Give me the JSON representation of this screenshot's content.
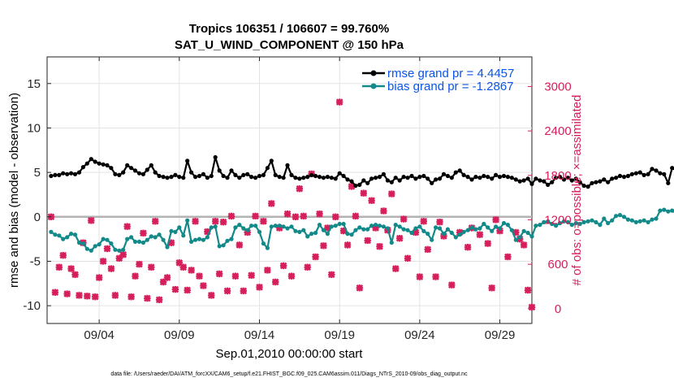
{
  "chart_data": {
    "type": "line",
    "title": "Tropics 106351 / 106607 = 99.760%",
    "subtitle": "SAT_U_WIND_COMPONENT @ 150 hPa",
    "xlabel": "Sep.01,2010 00:00:00 start",
    "ylabel": "rmse and bias (model - observation)",
    "y2label": "# of obs: o=possible; ×=assimilated",
    "footnote": "data file: /Users/raeder/DAI/ATM_forcXX/CAM6_setup/f.e21.FHIST_BGC.f09_025.CAM6assim.011/Diags_NTrS_2010-09/obs_diag_output.nc",
    "x_ticks": [
      "09/04",
      "09/09",
      "09/14",
      "09/19",
      "09/24",
      "09/29"
    ],
    "x_tick_days": [
      4,
      9,
      14,
      19,
      24,
      29
    ],
    "xlim": [
      0.75,
      31
    ],
    "ylim": [
      -12,
      18
    ],
    "y_ticks": [
      -10,
      -5,
      0,
      5,
      10,
      15
    ],
    "y2lim": [
      -200,
      3400
    ],
    "y2_ticks": [
      0,
      600,
      1200,
      1800,
      2400,
      3000
    ],
    "grid": true,
    "legend_position": "top-right",
    "colors": {
      "rmse": "#000000",
      "bias": "#138a8a",
      "obs": "#d61f5a",
      "zero_line": "#b3b3b3",
      "legend_text": "#0a55e6"
    },
    "series": [
      {
        "name": "rmse grand pr = 4.4457",
        "axis": "left",
        "x_start": 1,
        "x_step": 0.25,
        "values": [
          4.6,
          4.7,
          4.7,
          4.9,
          4.8,
          4.9,
          4.8,
          5.0,
          5.6,
          6.0,
          6.5,
          6.2,
          6.0,
          5.9,
          5.8,
          5.5,
          4.8,
          4.7,
          5.0,
          5.8,
          5.5,
          5.2,
          4.9,
          4.8,
          5.3,
          5.8,
          5.0,
          4.6,
          4.5,
          4.4,
          4.5,
          4.7,
          4.5,
          4.4,
          6.3,
          5.0,
          4.5,
          4.6,
          4.8,
          4.4,
          4.6,
          6.7,
          5.2,
          4.6,
          4.4,
          5.2,
          4.7,
          4.4,
          4.7,
          4.8,
          4.5,
          4.4,
          4.6,
          4.7,
          5.5,
          6.3,
          4.7,
          4.5,
          4.4,
          5.8,
          4.7,
          4.4,
          4.3,
          4.4,
          4.5,
          4.7,
          4.6,
          4.5,
          4.4,
          4.5,
          4.4,
          4.3,
          4.9,
          4.6,
          4.2,
          4.0,
          3.5,
          3.6,
          4.1,
          3.8,
          4.3,
          4.4,
          4.5,
          4.8,
          4.1,
          3.9,
          4.4,
          4.1,
          4.5,
          4.4,
          4.6,
          4.3,
          4.5,
          4.6,
          4.3,
          3.8,
          4.2,
          4.3,
          4.8,
          4.6,
          4.4,
          5.0,
          5.2,
          4.7,
          4.5,
          4.2,
          4.5,
          4.4,
          4.6,
          4.5,
          4.3,
          4.7,
          4.5,
          4.6,
          4.5,
          4.4,
          4.2,
          4.0,
          4.1,
          4.3,
          3.7,
          4.3,
          4.1,
          4.0,
          3.6,
          3.9,
          4.4,
          4.5,
          4.2,
          4.4,
          4.1,
          4.3,
          3.9,
          3.5,
          3.4,
          3.8,
          3.9,
          4.0,
          4.2,
          3.9,
          4.3,
          4.4,
          4.6,
          4.5,
          4.6,
          4.8,
          4.9,
          5.0,
          4.7,
          4.8,
          5.4,
          5.2,
          4.9,
          4.8,
          3.8,
          5.5,
          5.2,
          4.9,
          4.9
        ]
      },
      {
        "name": "bias grand pr = -1.2867",
        "axis": "left",
        "x_start": 1,
        "x_step": 0.25,
        "values": [
          -1.7,
          -2.0,
          -2.1,
          -2.5,
          -2.3,
          -1.9,
          -2.0,
          -2.9,
          -3.0,
          -3.6,
          -3.8,
          -3.3,
          -3.1,
          -2.5,
          -2.6,
          -3.0,
          -3.7,
          -3.8,
          -3.7,
          -2.5,
          -2.3,
          -2.8,
          -2.8,
          -2.9,
          -2.6,
          -2.2,
          -2.3,
          -2.0,
          -2.6,
          -3.4,
          -1.6,
          -1.7,
          -1.2,
          -2.1,
          -0.4,
          -2.8,
          -2.6,
          -2.5,
          -2.6,
          -2.3,
          -1.2,
          -1.1,
          -3.3,
          -3.2,
          -2.7,
          -2.5,
          -1.2,
          -0.9,
          -1.3,
          -1.5,
          -1.0,
          -1.0,
          -1.7,
          -3.0,
          -3.5,
          -1.1,
          -1.0,
          -1.0,
          -1.1,
          -1.3,
          -1.1,
          -1.6,
          -1.7,
          -1.5,
          -2.2,
          -1.9,
          -1.8,
          -0.9,
          -1.5,
          -1.9,
          -1.1,
          -1.0,
          -0.8,
          -0.8,
          -1.9,
          -2.0,
          -1.5,
          -1.2,
          -1.4,
          -1.4,
          -1.0,
          -0.9,
          -1.0,
          -1.1,
          -1.3,
          -2.9,
          -0.9,
          -1.1,
          -1.4,
          -1.5,
          -1.8,
          -1.3,
          -1.1,
          -1.6,
          -1.9,
          -2.6,
          -1.2,
          -1.3,
          -1.9,
          -1.4,
          -1.8,
          -2.3,
          -2.0,
          -1.7,
          -1.5,
          -1.2,
          -1.4,
          -1.3,
          -0.8,
          -1.2,
          -1.6,
          -1.1,
          -1.3,
          -0.7,
          -0.9,
          -1.5,
          -2.6,
          -2.3,
          -1.6,
          -1.8,
          -2.2,
          -1.0,
          -0.9,
          -0.6,
          -0.5,
          -0.8,
          -1.0,
          -0.7,
          -0.5,
          -0.6,
          -0.9,
          -0.7,
          -0.8,
          -0.6,
          -0.5,
          -0.4,
          -0.6,
          -0.9,
          -0.2,
          -0.7,
          -0.4,
          0.1,
          0.2,
          0.0,
          -0.3,
          -0.4,
          -0.6,
          -0.5,
          -0.4,
          -0.6,
          -0.3,
          -0.2,
          0.7,
          0.8,
          0.6,
          0.7,
          0.4,
          -0.8,
          -1.9
        ]
      },
      {
        "name": "",
        "axis": "right",
        "marker": "cross",
        "points": [
          [
            1,
            1240
          ],
          [
            1.25,
            220
          ],
          [
            1.5,
            560
          ],
          [
            1.75,
            720
          ],
          [
            2.0,
            200
          ],
          [
            2.25,
            540
          ],
          [
            2.5,
            460
          ],
          [
            2.75,
            180
          ],
          [
            3.0,
            890
          ],
          [
            3.25,
            170
          ],
          [
            3.5,
            1190
          ],
          [
            3.75,
            160
          ],
          [
            4.0,
            420
          ],
          [
            4.25,
            640
          ],
          [
            4.5,
            810
          ],
          [
            4.75,
            540
          ],
          [
            5.0,
            180
          ],
          [
            5.25,
            680
          ],
          [
            5.5,
            730
          ],
          [
            5.75,
            1110
          ],
          [
            6.0,
            160
          ],
          [
            6.25,
            440
          ],
          [
            6.5,
            600
          ],
          [
            6.75,
            1020
          ],
          [
            7.0,
            140
          ],
          [
            7.25,
            560
          ],
          [
            7.5,
            1180
          ],
          [
            7.75,
            120
          ],
          [
            8.0,
            360
          ],
          [
            8.25,
            420
          ],
          [
            8.5,
            890
          ],
          [
            8.75,
            260
          ],
          [
            9.0,
            620
          ],
          [
            9.25,
            560
          ],
          [
            9.5,
            250
          ],
          [
            9.75,
            520
          ],
          [
            10.0,
            1180
          ],
          [
            10.25,
            440
          ],
          [
            10.5,
            310
          ],
          [
            10.75,
            1040
          ],
          [
            11.0,
            180
          ],
          [
            11.25,
            1180
          ],
          [
            11.5,
            470
          ],
          [
            11.75,
            1170
          ],
          [
            12.0,
            240
          ],
          [
            12.25,
            1250
          ],
          [
            12.5,
            440
          ],
          [
            12.75,
            860
          ],
          [
            13.0,
            240
          ],
          [
            13.25,
            1030
          ],
          [
            13.5,
            450
          ],
          [
            13.75,
            1250
          ],
          [
            14.0,
            290
          ],
          [
            14.25,
            1180
          ],
          [
            14.5,
            520
          ],
          [
            14.75,
            1420
          ],
          [
            15.0,
            360
          ],
          [
            15.25,
            1090
          ],
          [
            15.5,
            580
          ],
          [
            15.75,
            1280
          ],
          [
            16.0,
            440
          ],
          [
            16.25,
            1240
          ],
          [
            16.5,
            1620
          ],
          [
            16.75,
            1250
          ],
          [
            17.0,
            560
          ],
          [
            17.25,
            1820
          ],
          [
            17.5,
            700
          ],
          [
            17.75,
            1280
          ],
          [
            18.0,
            850
          ],
          [
            18.25,
            1090
          ],
          [
            18.5,
            460
          ],
          [
            18.75,
            1240
          ],
          [
            19.0,
            2790
          ],
          [
            19.25,
            1050
          ],
          [
            19.5,
            860
          ],
          [
            19.75,
            1650
          ],
          [
            20.0,
            1250
          ],
          [
            20.25,
            280
          ],
          [
            20.5,
            1560
          ],
          [
            20.75,
            920
          ],
          [
            21.0,
            1460
          ],
          [
            21.25,
            1090
          ],
          [
            21.5,
            840
          ],
          [
            21.75,
            1320
          ],
          [
            22.0,
            1060
          ],
          [
            22.25,
            1550
          ],
          [
            22.5,
            540
          ],
          [
            22.75,
            950
          ],
          [
            23.0,
            1210
          ],
          [
            23.25,
            680
          ],
          [
            23.75,
            1030
          ],
          [
            24.0,
            430
          ],
          [
            24.25,
            1180
          ],
          [
            24.5,
            800
          ],
          [
            25.0,
            430
          ],
          [
            25.25,
            1170
          ],
          [
            25.5,
            980
          ],
          [
            26.0,
            320
          ],
          [
            26.5,
            1030
          ],
          [
            27.0,
            830
          ],
          [
            27.25,
            1090
          ],
          [
            27.75,
            1000
          ],
          [
            28.25,
            880
          ],
          [
            28.5,
            280
          ],
          [
            28.75,
            1200
          ],
          [
            29.0,
            1050
          ],
          [
            29.5,
            700
          ],
          [
            30.0,
            1030
          ],
          [
            30.25,
            940
          ],
          [
            30.5,
            860
          ],
          [
            30.75,
            250
          ],
          [
            31.0,
            20
          ]
        ]
      }
    ]
  }
}
